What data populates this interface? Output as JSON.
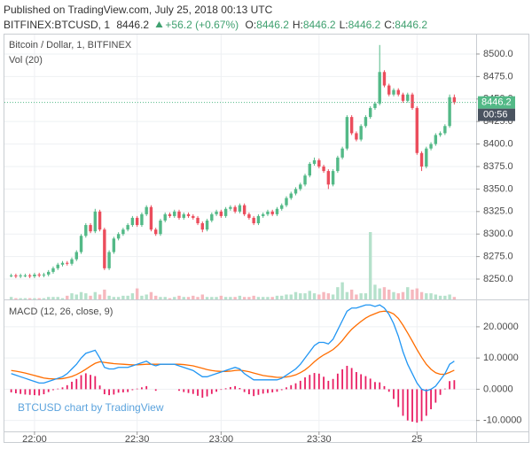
{
  "header": {
    "published": "Published on TradingView.com, July 25, 2018 00:13 UTC",
    "watermark": "BTCUSD chart by TradingView"
  },
  "chart_data": [
    {
      "type": "candlestick",
      "title": "Bitcoin / Dollar, 1, BITFINEX",
      "volume_label": "Vol (20)",
      "quote": {
        "symbol": "BITFINEX:BTCUSD, 1",
        "last": 8446.2,
        "change": "+56.2 (+0.67%)",
        "ohlc": [
          {
            "label": "O:",
            "value": 8446.2
          },
          {
            "label": "H:",
            "value": 8446.2
          },
          {
            "label": "L:",
            "value": 8446.2
          },
          {
            "label": "C:",
            "value": 8446.2
          }
        ]
      },
      "countdown": "00:56",
      "categories": [
        null,
        null,
        null,
        null,
        null,
        "22:00",
        null,
        null,
        null,
        null,
        null,
        null,
        null,
        null,
        null,
        null,
        null,
        null,
        null,
        null,
        null,
        null,
        null,
        null,
        null,
        null,
        null,
        "22:30",
        null,
        null,
        null,
        null,
        null,
        null,
        null,
        null,
        null,
        null,
        null,
        null,
        null,
        null,
        null,
        null,
        null,
        "23:00",
        null,
        null,
        null,
        null,
        null,
        null,
        null,
        null,
        null,
        null,
        null,
        null,
        null,
        null,
        null,
        null,
        null,
        null,
        null,
        null,
        "23:30",
        null,
        null,
        null,
        null,
        null,
        null,
        null,
        null,
        null,
        null,
        null,
        null,
        null,
        null,
        null,
        null,
        null,
        null,
        null,
        null,
        "25",
        null,
        null,
        null,
        null,
        null,
        null,
        null,
        null
      ],
      "open": [
        8254,
        8254,
        8253,
        8254,
        8254,
        8253,
        8255,
        8254,
        8255,
        8258,
        8262,
        8266,
        8268,
        8267,
        8272,
        8280,
        8298,
        8310,
        8303,
        8325,
        8305,
        8262,
        8280,
        8295,
        8300,
        8305,
        8310,
        8318,
        8310,
        8322,
        8330,
        8305,
        8300,
        8315,
        8322,
        8320,
        8325,
        8318,
        8322,
        8320,
        8318,
        8312,
        8305,
        8315,
        8322,
        8325,
        8320,
        8328,
        8330,
        8325,
        8332,
        8322,
        8318,
        8312,
        8320,
        8322,
        8325,
        8322,
        8328,
        8332,
        8340,
        8345,
        8350,
        8355,
        8365,
        8378,
        8382,
        8375,
        8370,
        8355,
        8370,
        8385,
        8395,
        8430,
        8412,
        8405,
        8420,
        8430,
        8440,
        8445,
        8480,
        8465,
        8455,
        8460,
        8455,
        8448,
        8455,
        8440,
        8390,
        8375,
        8395,
        8400,
        8410,
        8412,
        8420,
        8452
      ],
      "high": [
        8256,
        8256,
        8256,
        8256,
        8256,
        8257,
        8257,
        8257,
        8260,
        8264,
        8268,
        8270,
        8270,
        8274,
        8282,
        8300,
        8312,
        8312,
        8328,
        8327,
        8307,
        8282,
        8297,
        8302,
        8307,
        8312,
        8320,
        8320,
        8324,
        8332,
        8332,
        8307,
        8317,
        8324,
        8324,
        8327,
        8327,
        8324,
        8324,
        8322,
        8320,
        8314,
        8317,
        8324,
        8327,
        8327,
        8330,
        8332,
        8332,
        8334,
        8334,
        8324,
        8320,
        8322,
        8324,
        8327,
        8327,
        8330,
        8334,
        8342,
        8347,
        8352,
        8357,
        8367,
        8380,
        8385,
        8384,
        8377,
        8372,
        8372,
        8387,
        8397,
        8432,
        8432,
        8414,
        8422,
        8432,
        8442,
        8447,
        8510,
        8482,
        8467,
        8462,
        8462,
        8457,
        8457,
        8457,
        8442,
        8392,
        8397,
        8402,
        8412,
        8414,
        8422,
        8455,
        8455
      ],
      "low": [
        8252,
        8251,
        8251,
        8252,
        8251,
        8251,
        8252,
        8252,
        8253,
        8256,
        8260,
        8264,
        8265,
        8265,
        8270,
        8278,
        8296,
        8301,
        8301,
        8303,
        8260,
        8260,
        8278,
        8293,
        8298,
        8303,
        8308,
        8308,
        8308,
        8320,
        8303,
        8298,
        8298,
        8313,
        8318,
        8318,
        8316,
        8316,
        8318,
        8316,
        8310,
        8302,
        8303,
        8313,
        8320,
        8318,
        8318,
        8326,
        8323,
        8323,
        8320,
        8316,
        8310,
        8310,
        8318,
        8320,
        8320,
        8320,
        8326,
        8330,
        8338,
        8343,
        8348,
        8353,
        8363,
        8376,
        8373,
        8368,
        8350,
        8353,
        8368,
        8383,
        8393,
        8410,
        8403,
        8403,
        8418,
        8428,
        8438,
        8443,
        8463,
        8453,
        8453,
        8453,
        8446,
        8446,
        8438,
        8388,
        8370,
        8373,
        8393,
        8398,
        8408,
        8410,
        8418,
        8444
      ],
      "close": [
        8254,
        8253,
        8254,
        8254,
        8253,
        8255,
        8254,
        8255,
        8258,
        8262,
        8266,
        8268,
        8267,
        8272,
        8280,
        8298,
        8310,
        8303,
        8325,
        8305,
        8262,
        8280,
        8295,
        8300,
        8305,
        8310,
        8318,
        8310,
        8322,
        8330,
        8305,
        8300,
        8315,
        8322,
        8320,
        8325,
        8318,
        8322,
        8320,
        8318,
        8312,
        8305,
        8315,
        8322,
        8325,
        8320,
        8328,
        8330,
        8325,
        8332,
        8322,
        8318,
        8312,
        8320,
        8322,
        8325,
        8322,
        8328,
        8332,
        8340,
        8345,
        8350,
        8355,
        8365,
        8378,
        8382,
        8375,
        8370,
        8355,
        8370,
        8385,
        8395,
        8430,
        8412,
        8405,
        8420,
        8430,
        8440,
        8445,
        8480,
        8465,
        8455,
        8460,
        8455,
        8448,
        8455,
        8440,
        8390,
        8375,
        8395,
        8400,
        8410,
        8412,
        8420,
        8452,
        8446.2
      ],
      "volume": [
        2,
        1,
        1,
        1,
        1,
        1,
        1,
        1,
        2,
        2,
        2,
        1,
        3,
        5,
        4,
        6,
        5,
        3,
        6,
        4,
        8,
        3,
        2,
        2,
        3,
        3,
        5,
        9,
        3,
        4,
        6,
        3,
        2,
        2,
        1,
        2,
        3,
        2,
        2,
        3,
        2,
        4,
        2,
        2,
        2,
        3,
        2,
        2,
        2,
        3,
        2,
        2,
        3,
        2,
        2,
        2,
        2,
        3,
        3,
        4,
        4,
        6,
        5,
        5,
        7,
        5,
        4,
        6,
        5,
        4,
        10,
        14,
        6,
        8,
        4,
        5,
        5,
        55,
        12,
        9,
        10,
        8,
        6,
        5,
        6,
        10,
        8,
        9,
        6,
        5,
        5,
        4,
        3,
        3,
        4,
        2
      ],
      "up_color": "#53b987",
      "down_color": "#eb4d5c",
      "volume_up_color": "#b5e1cb",
      "volume_down_color": "#f6b8be",
      "last_line_color": "#53b987",
      "countdown_color": "#4a5360",
      "ylim": [
        8227.4,
        8522.6
      ],
      "yticks": [
        {
          "value": 8250,
          "label": "8250.0"
        },
        {
          "value": 8275,
          "label": "8275.0"
        },
        {
          "value": 8300,
          "label": "8300.0"
        },
        {
          "value": 8325,
          "label": "8325.0"
        },
        {
          "value": 8350,
          "label": "8350.0"
        },
        {
          "value": 8375,
          "label": "8375.0"
        },
        {
          "value": 8400,
          "label": "8400.0"
        },
        {
          "value": 8425,
          "label": "8425.0"
        },
        {
          "value": 8450,
          "label": "8450.0"
        },
        {
          "value": 8475,
          "label": "8475.0"
        },
        {
          "value": 8500,
          "label": "8500.0"
        }
      ],
      "grid": true
    },
    {
      "type": "macd",
      "title": "MACD (12, 26, close, 9)",
      "macd": [
        5,
        4.5,
        4,
        3.5,
        3,
        2.5,
        2,
        2,
        2.5,
        3,
        3.5,
        4,
        5,
        6.5,
        8,
        10,
        11.5,
        12,
        12.5,
        10,
        7,
        6.5,
        6.5,
        7,
        7,
        7,
        7.5,
        8,
        8.5,
        9,
        8,
        7.5,
        8,
        8,
        8,
        8,
        7.5,
        7,
        6.5,
        6,
        5,
        4,
        4,
        4.5,
        5,
        5.5,
        6,
        6.5,
        7,
        6.5,
        5,
        4,
        3,
        3,
        3,
        3,
        3,
        3,
        3.5,
        4.5,
        5.5,
        6.5,
        8,
        10,
        12,
        14,
        15,
        15,
        14.5,
        16,
        19,
        22,
        25,
        26,
        26,
        26.5,
        27,
        27,
        26.5,
        27,
        26,
        24,
        21,
        17,
        12,
        8,
        5,
        2,
        0,
        -0.5,
        0,
        1,
        3,
        5,
        8,
        9
      ],
      "signal": [
        6,
        5.8,
        5.5,
        5.2,
        4.8,
        4.4,
        4,
        3.6,
        3.4,
        3.3,
        3.3,
        3.4,
        3.7,
        4.1,
        4.7,
        5.5,
        6.4,
        7.4,
        8.3,
        8.8,
        8.6,
        8.4,
        8.2,
        8.1,
        8,
        7.9,
        7.8,
        7.8,
        7.9,
        8,
        8,
        8,
        8,
        8,
        8,
        8,
        8,
        7.9,
        7.7,
        7.5,
        7.1,
        6.7,
        6.3,
        6,
        5.8,
        5.7,
        5.7,
        5.8,
        6,
        6.1,
        5.9,
        5.6,
        5.2,
        4.8,
        4.4,
        4.2,
        4,
        3.8,
        3.8,
        3.9,
        4.2,
        4.6,
        5.3,
        6.2,
        7.4,
        8.8,
        10,
        11,
        11.8,
        12.7,
        14,
        15.6,
        17.5,
        19.2,
        20.5,
        21.7,
        22.8,
        23.6,
        24.2,
        24.8,
        25,
        24.8,
        24.1,
        22.7,
        20.5,
        18,
        15.4,
        12.7,
        10.2,
        8,
        6.4,
        5.3,
        4.8,
        4.8,
        5.4,
        6.1
      ],
      "histogram": [
        -1,
        -1.3,
        -1.5,
        -1.7,
        -1.8,
        -1.9,
        -2,
        -1.6,
        -0.9,
        -0.3,
        0.2,
        0.6,
        1.3,
        2.4,
        3.3,
        4.5,
        5.1,
        4.6,
        4.2,
        1.2,
        -1.6,
        -1.9,
        -1.7,
        -1.1,
        -1,
        -0.9,
        -0.3,
        0.2,
        0.6,
        1,
        0,
        -0.5,
        0,
        0,
        0,
        0,
        -0.5,
        -0.9,
        -1.2,
        -1.5,
        -2.1,
        -2.7,
        -2.3,
        -1.5,
        -0.8,
        -0.2,
        0.3,
        0.7,
        1,
        0.4,
        -0.9,
        -1.6,
        -2.2,
        -1.8,
        -1.4,
        -1.2,
        -1,
        -0.8,
        -0.3,
        0.6,
        1.3,
        1.9,
        2.7,
        3.8,
        4.6,
        5.2,
        5,
        4,
        2.7,
        3.3,
        5,
        6.4,
        7.5,
        6.8,
        5.5,
        4.8,
        4.2,
        3.4,
        2.3,
        2.2,
        1,
        -0.8,
        -3.1,
        -5.7,
        -8.5,
        -10,
        -10.4,
        -10.7,
        -10.2,
        -8.5,
        -6.4,
        -4.3,
        -1.8,
        0.2,
        2.6,
        2.9
      ],
      "macd_color": "#2196f3",
      "signal_color": "#ff6d00",
      "histogram_color": "#e91e63",
      "ylim": [
        -13.5,
        28.2
      ],
      "yticks": [
        {
          "value": -10,
          "label": "-10.0000"
        },
        {
          "value": 0,
          "label": "0.0000"
        },
        {
          "value": 10,
          "label": "10.0000"
        },
        {
          "value": 20,
          "label": "20.0000"
        }
      ],
      "grid": true
    }
  ]
}
